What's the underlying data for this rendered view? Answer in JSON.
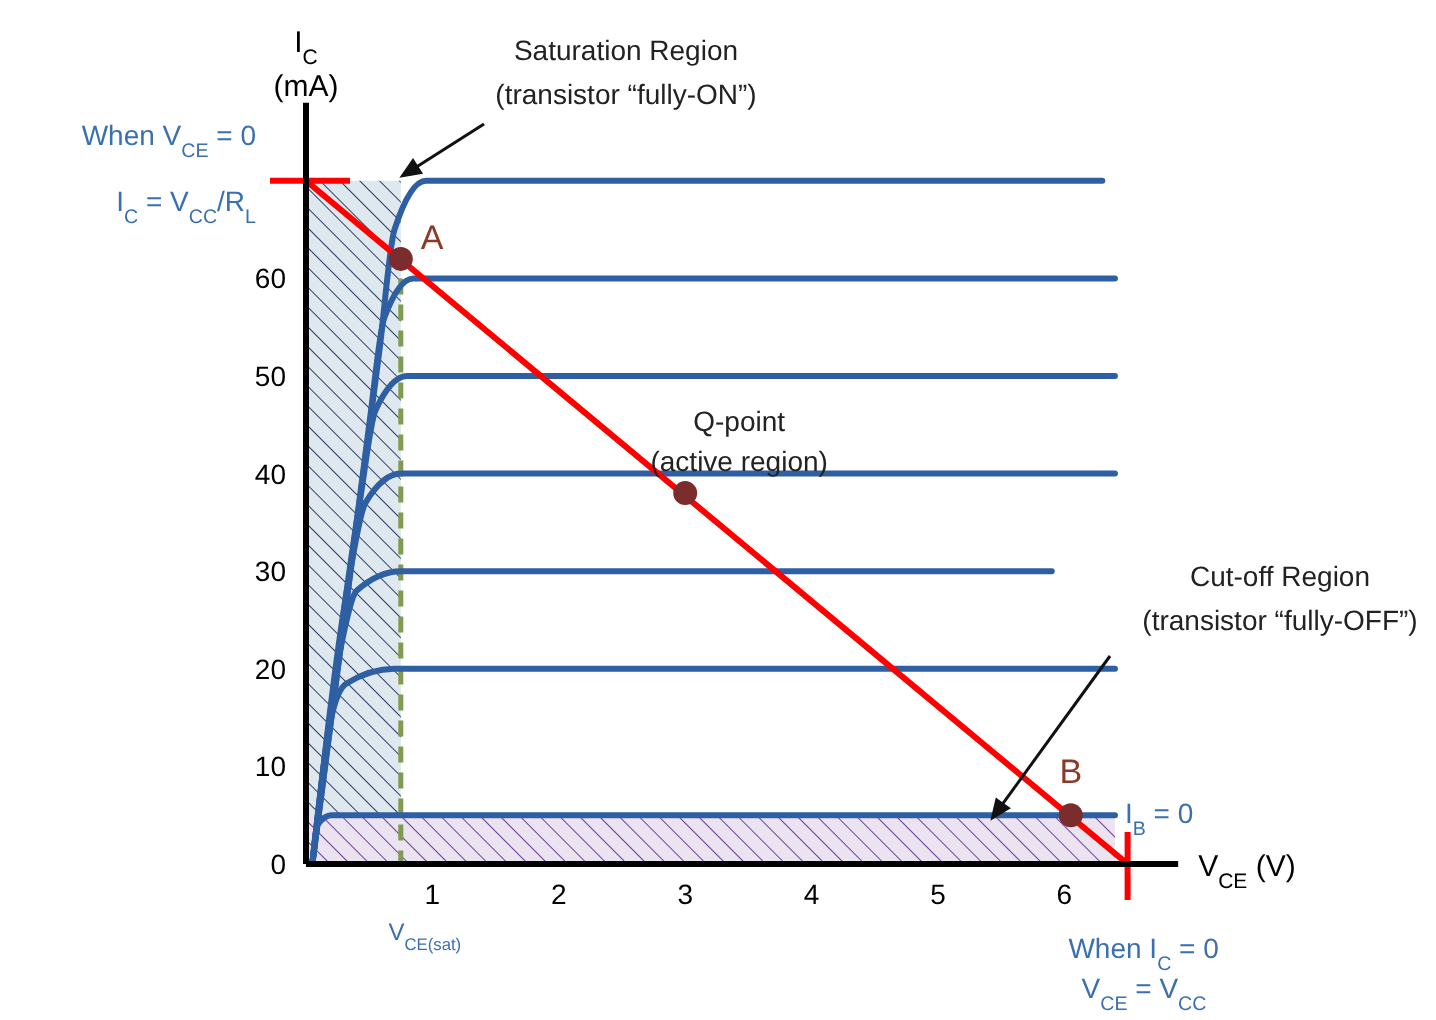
{
  "chart_data": {
    "type": "line",
    "xlabel": "V$_{CE}$ (V)",
    "ylabel": "I$_{C}$\n(mA)",
    "xlim": [
      0,
      6.9
    ],
    "ylim": [
      0,
      78
    ],
    "xticks": [
      1,
      2,
      3,
      4,
      5,
      6
    ],
    "yticks": [
      0,
      10,
      20,
      30,
      40,
      50,
      60
    ],
    "series": [
      {
        "color": "#2e5fa3",
        "x": [
          0.05,
          0.58,
          0.7,
          0.95,
          6.3
        ],
        "values": [
          0,
          52.5,
          65,
          70,
          70
        ]
      },
      {
        "color": "#2e5fa3",
        "x": [
          0.05,
          0.5,
          0.62,
          0.85,
          6.4
        ],
        "values": [
          0,
          45,
          56,
          60,
          60
        ]
      },
      {
        "color": "#2e5fa3",
        "x": [
          0.05,
          0.43,
          0.55,
          0.8,
          6.4
        ],
        "values": [
          0,
          37.5,
          46.5,
          50,
          50
        ]
      },
      {
        "color": "#2e5fa3",
        "x": [
          0.05,
          0.35,
          0.47,
          0.75,
          6.4
        ],
        "values": [
          0,
          30,
          37,
          40,
          40
        ]
      },
      {
        "color": "#2e5fa3",
        "x": [
          0.05,
          0.28,
          0.4,
          0.75,
          5.9
        ],
        "values": [
          0,
          22.5,
          28,
          30,
          30
        ]
      },
      {
        "color": "#2e5fa3",
        "x": [
          0.05,
          0.2,
          0.32,
          0.7,
          6.4
        ],
        "values": [
          0,
          15,
          18.5,
          20,
          20
        ]
      },
      {
        "color": "#2e5fa3",
        "x": [
          0.05,
          0.09,
          0.2,
          0.5,
          6.4
        ],
        "values": [
          0,
          4,
          5,
          5,
          5
        ]
      },
      {
        "color": "#ff0000",
        "x": [
          0,
          6.5
        ],
        "values": [
          70,
          0
        ]
      },
      {
        "type": "scatter",
        "marker": "circle",
        "color": "#7b2d2d",
        "x": [
          0.75,
          3,
          6.05
        ],
        "values": [
          62,
          38,
          5
        ]
      }
    ],
    "ref_lines": [
      {
        "axis": "x",
        "value": 0.75,
        "label": "V$_{CE(sat)}$",
        "color": "#7f9b50",
        "line_style": "dashed"
      }
    ],
    "bands": [
      {
        "axis": "x",
        "from": 0,
        "to": 0.75,
        "color": "#dfe8ee"
      },
      {
        "axis": "y",
        "from": 0,
        "to": 5,
        "color": "#ece3f0"
      }
    ],
    "annotations": [
      {
        "text": "When V$_{CE}$ = 0",
        "x": 0,
        "y": 70
      },
      {
        "text": "I$_{C}$ = V$_{CC}$/R$_{L}$",
        "x": 0,
        "y": 70
      },
      "Saturation Region",
      "(transistor “fully-ON”)",
      {
        "text": "A",
        "x": 0.75,
        "y": 62
      },
      {
        "text": "Q-point",
        "x": 3,
        "y": 38
      },
      {
        "text": "(active region)",
        "x": 3,
        "y": 38
      },
      "Cut-off Region",
      "(transistor “fully-OFF”)",
      {
        "text": "B",
        "x": 6.05,
        "y": 5
      },
      {
        "text": "I$_{B}$ = 0",
        "x": 6.4,
        "y": 5
      },
      {
        "text": "When I$_{C}$ = 0",
        "x": 6.5,
        "y": 0
      },
      "V$_{CE}$ = V$_{CC}$"
    ]
  }
}
